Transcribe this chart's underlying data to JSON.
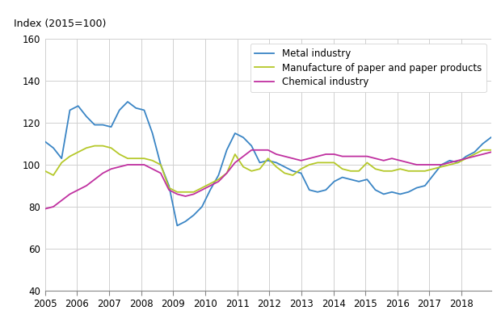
{
  "title": "Index (2015=100)",
  "ylim": [
    40,
    160
  ],
  "yticks": [
    40,
    60,
    80,
    100,
    120,
    140,
    160
  ],
  "xlim_start": 2005.0,
  "xlim_end": 2018.92,
  "xticks": [
    2005,
    2006,
    2007,
    2008,
    2009,
    2010,
    2011,
    2012,
    2013,
    2014,
    2015,
    2016,
    2017,
    2018
  ],
  "legend_labels": [
    "Metal industry",
    "Manufacture of paper and paper products",
    "Chemical industry"
  ],
  "colors": [
    "#3a85c5",
    "#b5c829",
    "#c030a0"
  ],
  "line_width": 1.3,
  "grid_color": "#d0d0d0",
  "background_color": "#ffffff",
  "metal": [
    111,
    108,
    103,
    126,
    128,
    123,
    119,
    119,
    118,
    126,
    130,
    127,
    126,
    115,
    100,
    90,
    71,
    73,
    76,
    80,
    88,
    95,
    107,
    115,
    113,
    109,
    101,
    102,
    101,
    99,
    97,
    96,
    88,
    87,
    88,
    92,
    94,
    93,
    92,
    93,
    88,
    86,
    87,
    86,
    87,
    89,
    90,
    95,
    100,
    102,
    101,
    104,
    106,
    110,
    113
  ],
  "paper": [
    97,
    95,
    101,
    104,
    106,
    108,
    109,
    109,
    108,
    105,
    103,
    103,
    103,
    102,
    100,
    89,
    87,
    87,
    87,
    89,
    91,
    93,
    96,
    105,
    99,
    97,
    98,
    103,
    99,
    96,
    95,
    98,
    100,
    101,
    101,
    101,
    98,
    97,
    97,
    101,
    98,
    97,
    97,
    98,
    97,
    97,
    97,
    98,
    99,
    100,
    101,
    103,
    105,
    107,
    107
  ],
  "chemical": [
    79,
    80,
    83,
    86,
    88,
    90,
    93,
    96,
    98,
    99,
    100,
    100,
    100,
    98,
    96,
    88,
    86,
    85,
    86,
    88,
    90,
    92,
    96,
    101,
    104,
    107,
    107,
    107,
    105,
    104,
    103,
    102,
    103,
    104,
    105,
    105,
    104,
    104,
    104,
    104,
    103,
    102,
    103,
    102,
    101,
    100,
    100,
    100,
    100,
    101,
    102,
    103,
    104,
    105,
    106
  ],
  "n_points": 55
}
